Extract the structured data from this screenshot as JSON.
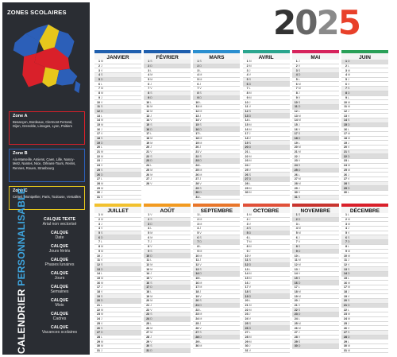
{
  "sidebar": {
    "title": "ZONES SCOLAIRES",
    "zones": [
      {
        "title": "Zone A",
        "text": "Besançon, Bordeaux, Clermont-Ferrand, Dijon, Grenoble, Limoges, Lyon, Poitiers"
      },
      {
        "title": "Zone B",
        "text": "Aix-Marseille, Amiens, Caen, Lille, Nancy-Metz, Nantes, Nice, Orléans-Tours, Reims, Rennes, Rouen, Strasbourg"
      },
      {
        "title": "Zone C",
        "text": "Créteil, Montpellier, Paris, Toulouse, Versailles"
      }
    ],
    "vertical_title_1": "CALENDRIER",
    "vertical_title_2": "PERSONNALISABLE",
    "layers": [
      {
        "l1": "CALQUE TEXTE",
        "l2": "Arial non vectorisé"
      },
      {
        "l1": "CALQUE",
        "l2": "Date"
      },
      {
        "l1": "CALQUE",
        "l2": "Jours fériés"
      },
      {
        "l1": "CALQUE",
        "l2": "Phases lunaires"
      },
      {
        "l1": "CALQUE",
        "l2": "Jours"
      },
      {
        "l1": "CALQUE",
        "l2": "Semaines"
      },
      {
        "l1": "CALQUE",
        "l2": "Mois"
      },
      {
        "l1": "CALQUE",
        "l2": "Cadres"
      },
      {
        "l1": "CALQUE",
        "l2": "Vacances scolaires"
      }
    ]
  },
  "year": [
    "2",
    "0",
    "2",
    "5"
  ],
  "colors": {
    "zone_a": "#d9202a",
    "zone_b": "#2c5fb8",
    "zone_c": "#e6c71c"
  },
  "months": [
    {
      "name": "JANVIER",
      "color": "#1f5fae",
      "days": 31,
      "start": 3
    },
    {
      "name": "FÉVRIER",
      "color": "#1f5fae",
      "days": 28,
      "start": 6
    },
    {
      "name": "MARS",
      "color": "#2b8fd0",
      "days": 31,
      "start": 6
    },
    {
      "name": "AVRIL",
      "color": "#2aa58e",
      "days": 30,
      "start": 2
    },
    {
      "name": "MAI",
      "color": "#d6235c",
      "days": 31,
      "start": 4
    },
    {
      "name": "JUIN",
      "color": "#2aa058",
      "days": 30,
      "start": 0
    },
    {
      "name": "JUILLET",
      "color": "#f2c12e",
      "days": 31,
      "start": 2
    },
    {
      "name": "AOÛT",
      "color": "#f29a1f",
      "days": 31,
      "start": 5
    },
    {
      "name": "SEPTEMBRE",
      "color": "#e8762a",
      "days": 30,
      "start": 1
    },
    {
      "name": "OCTOBRE",
      "color": "#e05038",
      "days": 31,
      "start": 3
    },
    {
      "name": "NOVEMBRE",
      "color": "#c8342e",
      "days": 30,
      "start": 6
    },
    {
      "name": "DÉCEMBRE",
      "color": "#d9202a",
      "days": 31,
      "start": 1
    }
  ],
  "weekday_letters": [
    "D",
    "L",
    "M",
    "M",
    "J",
    "V",
    "S"
  ]
}
